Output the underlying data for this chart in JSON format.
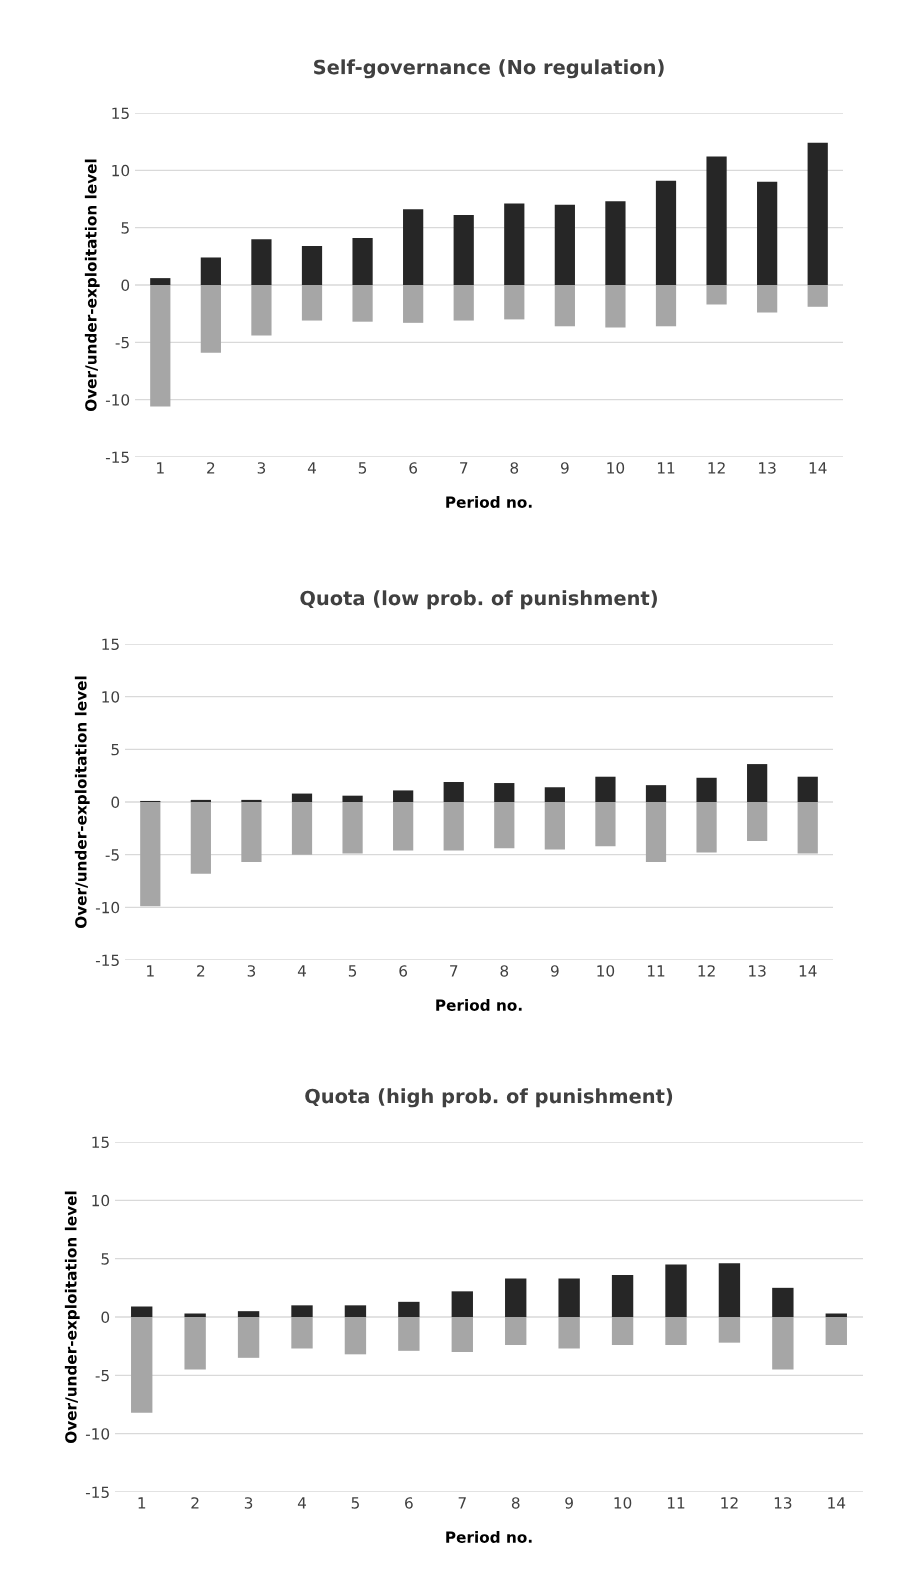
{
  "chart_data": [
    {
      "type": "bar",
      "title": "Self-governance (No regulation)",
      "xlabel": "Period no.",
      "ylabel": "Over/under-exploitation level",
      "categories": [
        "1",
        "2",
        "3",
        "4",
        "5",
        "6",
        "7",
        "8",
        "9",
        "10",
        "11",
        "12",
        "13",
        "14"
      ],
      "stacked": true,
      "series": [
        {
          "color": "#262626",
          "values": [
            0.6,
            2.4,
            4.0,
            3.4,
            4.1,
            6.6,
            6.1,
            7.1,
            7.0,
            7.3,
            9.1,
            11.2,
            9.0,
            12.4
          ]
        },
        {
          "color": "#a6a6a6",
          "values": [
            -10.6,
            -5.9,
            -4.4,
            -3.1,
            -3.2,
            -3.3,
            -3.1,
            -3.0,
            -3.6,
            -3.7,
            -3.6,
            -1.7,
            -2.4,
            -1.9
          ]
        }
      ],
      "ylim": [
        -15,
        15
      ],
      "yticks": [
        -15,
        -10,
        -5,
        0,
        5,
        10,
        15
      ],
      "grid": "y"
    },
    {
      "type": "bar",
      "title": "Quota (low prob. of punishment)",
      "xlabel": "Period no.",
      "ylabel": "Over/under-exploitation level",
      "categories": [
        "1",
        "2",
        "3",
        "4",
        "5",
        "6",
        "7",
        "8",
        "9",
        "10",
        "11",
        "12",
        "13",
        "14"
      ],
      "stacked": true,
      "series": [
        {
          "color": "#262626",
          "values": [
            0.1,
            0.2,
            0.2,
            0.8,
            0.6,
            1.1,
            1.9,
            1.8,
            1.4,
            2.4,
            1.6,
            2.3,
            3.6,
            2.4
          ]
        },
        {
          "color": "#a6a6a6",
          "values": [
            -9.9,
            -6.8,
            -5.7,
            -5.0,
            -4.9,
            -4.6,
            -4.6,
            -4.4,
            -4.5,
            -4.2,
            -5.7,
            -4.8,
            -3.7,
            -4.9
          ]
        }
      ],
      "ylim": [
        -15,
        15
      ],
      "yticks": [
        -15,
        -10,
        -5,
        0,
        5,
        10,
        15
      ],
      "grid": "y"
    },
    {
      "type": "bar",
      "title": "Quota (high prob. of punishment)",
      "xlabel": "Period no.",
      "ylabel": "Over/under-exploitation level",
      "categories": [
        "1",
        "2",
        "3",
        "4",
        "5",
        "6",
        "7",
        "8",
        "9",
        "10",
        "11",
        "12",
        "13",
        "14"
      ],
      "stacked": true,
      "series": [
        {
          "color": "#262626",
          "values": [
            0.9,
            0.3,
            0.5,
            1.0,
            1.0,
            1.3,
            2.2,
            3.3,
            3.3,
            3.6,
            4.5,
            4.6,
            2.5,
            0.3
          ]
        },
        {
          "color": "#a6a6a6",
          "values": [
            -8.2,
            -4.5,
            -3.5,
            -2.7,
            -3.2,
            -2.9,
            -3.0,
            -2.4,
            -2.7,
            -2.4,
            -2.4,
            -2.2,
            -4.5,
            -2.4
          ]
        }
      ],
      "ylim": [
        -15,
        15
      ],
      "yticks": [
        -15,
        -10,
        -5,
        0,
        5,
        10,
        15
      ],
      "grid": "y"
    }
  ]
}
